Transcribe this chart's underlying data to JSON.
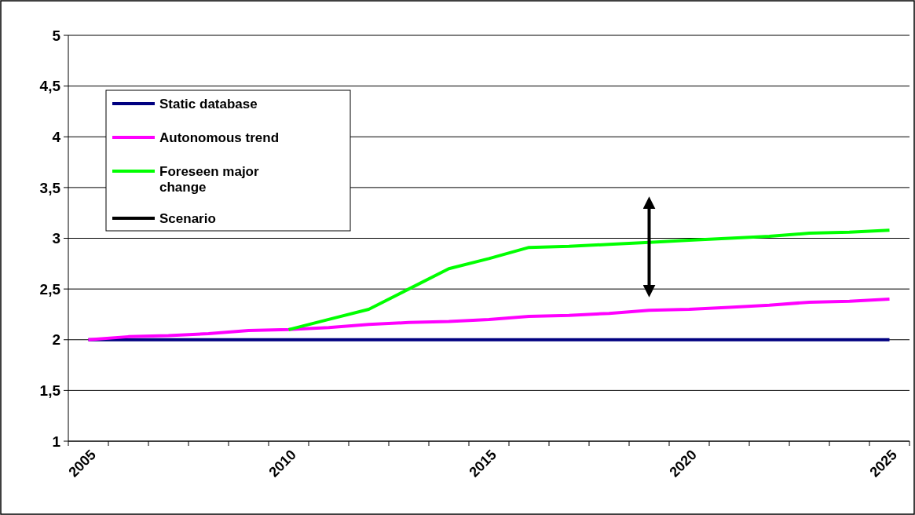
{
  "chart_data": {
    "type": "line",
    "x": [
      2005,
      2006,
      2007,
      2008,
      2009,
      2010,
      2011,
      2012,
      2013,
      2014,
      2015,
      2016,
      2017,
      2018,
      2019,
      2020,
      2021,
      2022,
      2023,
      2024,
      2025
    ],
    "series": [
      {
        "name": "Static database",
        "color": "#000080",
        "values": [
          2,
          2,
          2,
          2,
          2,
          2,
          2,
          2,
          2,
          2,
          2,
          2,
          2,
          2,
          2,
          2,
          2,
          2,
          2,
          2,
          2
        ]
      },
      {
        "name": "Autonomous trend",
        "color": "#ff00ff",
        "values": [
          2,
          2.03,
          2.04,
          2.06,
          2.09,
          2.1,
          2.12,
          2.15,
          2.17,
          2.18,
          2.2,
          2.23,
          2.24,
          2.26,
          2.29,
          2.3,
          2.32,
          2.34,
          2.37,
          2.38,
          2.4
        ]
      },
      {
        "name": "Foreseen major change",
        "color": "#00ff00",
        "values": [
          null,
          null,
          null,
          null,
          null,
          2.1,
          2.2,
          2.3,
          2.5,
          2.7,
          2.8,
          2.91,
          2.92,
          2.94,
          2.96,
          2.98,
          3.0,
          3.02,
          3.05,
          3.06,
          3.08
        ]
      },
      {
        "name": "Scenario",
        "color": "#000000",
        "x": [
          2019,
          2019
        ],
        "values": [
          2.48,
          3.35
        ]
      }
    ],
    "xlim": [
      2004.5,
      2025.5
    ],
    "xticks": [
      {
        "value": 2004.5,
        "label": null
      },
      2005,
      {
        "value": 2005.5,
        "label": null
      },
      {
        "value": 2006.5,
        "label": null
      },
      {
        "value": 2007.5,
        "label": null
      },
      {
        "value": 2008.5,
        "label": null
      },
      {
        "value": 2009.5,
        "label": null
      },
      2010,
      {
        "value": 2010.5,
        "label": null
      },
      {
        "value": 2011.5,
        "label": null
      },
      {
        "value": 2012.5,
        "label": null
      },
      {
        "value": 2013.5,
        "label": null
      },
      {
        "value": 2014.5,
        "label": null
      },
      2015,
      {
        "value": 2015.5,
        "label": null
      },
      {
        "value": 2016.5,
        "label": null
      },
      {
        "value": 2017.5,
        "label": null
      },
      {
        "value": 2018.5,
        "label": null
      },
      {
        "value": 2019.5,
        "label": null
      },
      2020,
      {
        "value": 2020.5,
        "label": null
      },
      {
        "value": 2021.5,
        "label": null
      },
      {
        "value": 2022.5,
        "label": null
      },
      {
        "value": 2023.5,
        "label": null
      },
      {
        "value": 2024.5,
        "label": null
      },
      2025,
      {
        "value": 2025.5,
        "label": null
      }
    ],
    "ylim": [
      1,
      5
    ],
    "yticks": [
      1,
      {
        "value": 1.5,
        "label": "1,5"
      },
      2,
      {
        "value": 2.5,
        "label": "2,5"
      },
      3,
      {
        "value": 3.5,
        "label": "3,5"
      },
      4,
      {
        "value": 4.5,
        "label": "4,5"
      },
      5
    ],
    "grid": "y",
    "legend": "top left",
    "line_style": "solid",
    "marker": "none"
  }
}
